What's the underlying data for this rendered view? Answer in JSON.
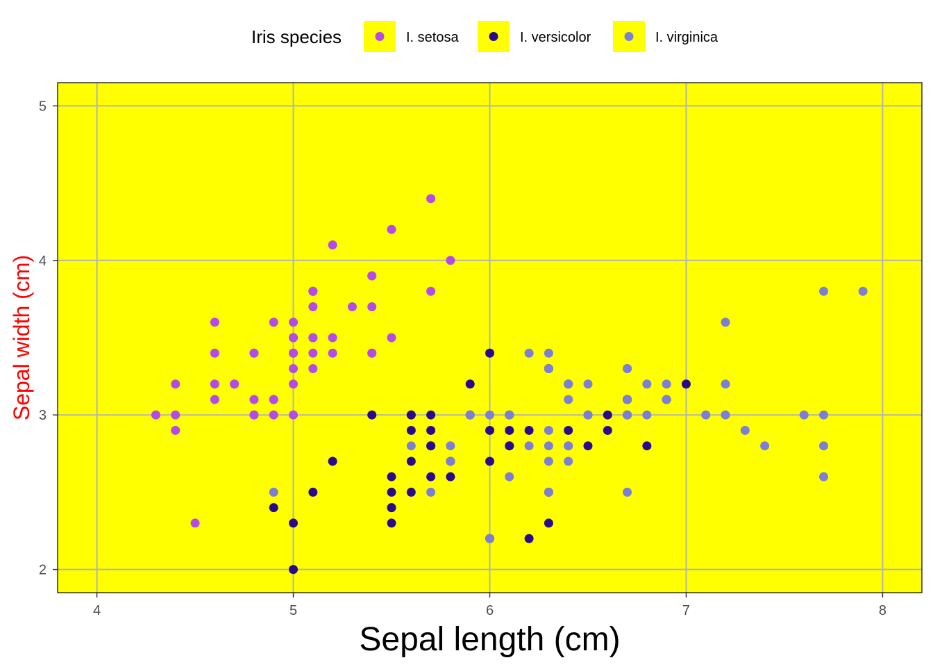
{
  "chart_data": {
    "type": "scatter",
    "title": "",
    "xlabel": "Sepal length (cm)",
    "ylabel": "Sepal width (cm)",
    "ylabel_color": "#ff0000",
    "xlim": [
      3.8,
      8.2
    ],
    "ylim": [
      1.85,
      5.15
    ],
    "x_ticks": [
      4,
      5,
      6,
      7,
      8
    ],
    "y_ticks": [
      2,
      3,
      4,
      5
    ],
    "grid": true,
    "panel_background": "#ffff00",
    "grid_color": "#b3b3b3",
    "legend": {
      "title": "Iris species",
      "position": "top",
      "key_background": "#ffff00"
    },
    "series": [
      {
        "name": "I. setosa",
        "color": "#b44ae8",
        "points": [
          [
            5.1,
            3.5
          ],
          [
            4.9,
            3.0
          ],
          [
            4.7,
            3.2
          ],
          [
            4.6,
            3.1
          ],
          [
            5.0,
            3.6
          ],
          [
            5.4,
            3.9
          ],
          [
            4.6,
            3.4
          ],
          [
            5.0,
            3.4
          ],
          [
            4.4,
            2.9
          ],
          [
            4.9,
            3.1
          ],
          [
            5.4,
            3.7
          ],
          [
            4.8,
            3.4
          ],
          [
            4.8,
            3.0
          ],
          [
            4.3,
            3.0
          ],
          [
            5.8,
            4.0
          ],
          [
            5.7,
            4.4
          ],
          [
            5.4,
            3.9
          ],
          [
            5.1,
            3.5
          ],
          [
            5.7,
            3.8
          ],
          [
            5.1,
            3.8
          ],
          [
            5.4,
            3.4
          ],
          [
            5.1,
            3.7
          ],
          [
            4.6,
            3.6
          ],
          [
            5.1,
            3.3
          ],
          [
            4.8,
            3.4
          ],
          [
            5.0,
            3.0
          ],
          [
            5.0,
            3.4
          ],
          [
            5.2,
            3.5
          ],
          [
            5.2,
            3.4
          ],
          [
            4.7,
            3.2
          ],
          [
            4.8,
            3.1
          ],
          [
            5.4,
            3.4
          ],
          [
            5.2,
            4.1
          ],
          [
            5.5,
            4.2
          ],
          [
            4.9,
            3.1
          ],
          [
            5.0,
            3.2
          ],
          [
            5.5,
            3.5
          ],
          [
            4.9,
            3.6
          ],
          [
            4.4,
            3.0
          ],
          [
            5.1,
            3.4
          ],
          [
            5.0,
            3.5
          ],
          [
            4.5,
            2.3
          ],
          [
            4.4,
            3.2
          ],
          [
            5.0,
            3.5
          ],
          [
            5.1,
            3.8
          ],
          [
            4.8,
            3.0
          ],
          [
            5.1,
            3.8
          ],
          [
            4.6,
            3.2
          ],
          [
            5.3,
            3.7
          ],
          [
            5.0,
            3.3
          ]
        ]
      },
      {
        "name": "I. versicolor",
        "color": "#2a0a8c",
        "points": [
          [
            7.0,
            3.2
          ],
          [
            6.4,
            3.2
          ],
          [
            6.9,
            3.1
          ],
          [
            5.5,
            2.3
          ],
          [
            6.5,
            2.8
          ],
          [
            5.7,
            2.8
          ],
          [
            6.3,
            3.3
          ],
          [
            4.9,
            2.4
          ],
          [
            6.6,
            2.9
          ],
          [
            5.2,
            2.7
          ],
          [
            5.0,
            2.0
          ],
          [
            5.9,
            3.0
          ],
          [
            6.0,
            2.2
          ],
          [
            6.1,
            2.9
          ],
          [
            5.6,
            2.9
          ],
          [
            6.7,
            3.1
          ],
          [
            5.6,
            3.0
          ],
          [
            5.8,
            2.7
          ],
          [
            6.2,
            2.2
          ],
          [
            5.6,
            2.5
          ],
          [
            5.9,
            3.2
          ],
          [
            6.1,
            2.8
          ],
          [
            6.3,
            2.5
          ],
          [
            6.1,
            2.8
          ],
          [
            6.4,
            2.9
          ],
          [
            6.6,
            3.0
          ],
          [
            6.8,
            2.8
          ],
          [
            6.7,
            3.0
          ],
          [
            6.0,
            2.9
          ],
          [
            5.7,
            2.6
          ],
          [
            5.5,
            2.4
          ],
          [
            5.5,
            2.4
          ],
          [
            5.8,
            2.7
          ],
          [
            6.0,
            2.7
          ],
          [
            5.4,
            3.0
          ],
          [
            6.0,
            3.4
          ],
          [
            6.7,
            3.1
          ],
          [
            6.3,
            2.3
          ],
          [
            5.6,
            3.0
          ],
          [
            5.5,
            2.5
          ],
          [
            5.5,
            2.6
          ],
          [
            6.1,
            3.0
          ],
          [
            5.8,
            2.6
          ],
          [
            5.0,
            2.3
          ],
          [
            5.6,
            2.7
          ],
          [
            5.7,
            3.0
          ],
          [
            5.7,
            2.9
          ],
          [
            6.2,
            2.9
          ],
          [
            5.1,
            2.5
          ],
          [
            5.7,
            2.8
          ]
        ]
      },
      {
        "name": "I. virginica",
        "color": "#7b7fd6",
        "points": [
          [
            6.3,
            3.3
          ],
          [
            5.8,
            2.7
          ],
          [
            7.1,
            3.0
          ],
          [
            6.3,
            2.9
          ],
          [
            6.5,
            3.0
          ],
          [
            7.6,
            3.0
          ],
          [
            4.9,
            2.5
          ],
          [
            7.3,
            2.9
          ],
          [
            6.7,
            2.5
          ],
          [
            7.2,
            3.6
          ],
          [
            6.5,
            3.2
          ],
          [
            6.4,
            2.7
          ],
          [
            6.8,
            3.0
          ],
          [
            5.7,
            2.5
          ],
          [
            5.8,
            2.8
          ],
          [
            6.4,
            3.2
          ],
          [
            6.5,
            3.0
          ],
          [
            7.7,
            3.8
          ],
          [
            7.7,
            2.6
          ],
          [
            6.0,
            2.2
          ],
          [
            6.9,
            3.2
          ],
          [
            5.6,
            2.8
          ],
          [
            7.7,
            2.8
          ],
          [
            6.3,
            2.7
          ],
          [
            6.7,
            3.3
          ],
          [
            7.2,
            3.2
          ],
          [
            6.2,
            2.8
          ],
          [
            6.1,
            3.0
          ],
          [
            6.4,
            2.8
          ],
          [
            7.2,
            3.0
          ],
          [
            7.4,
            2.8
          ],
          [
            7.9,
            3.8
          ],
          [
            6.4,
            2.8
          ],
          [
            6.3,
            2.8
          ],
          [
            6.1,
            2.6
          ],
          [
            7.7,
            3.0
          ],
          [
            6.3,
            3.4
          ],
          [
            6.4,
            3.1
          ],
          [
            6.0,
            3.0
          ],
          [
            6.9,
            3.1
          ],
          [
            6.7,
            3.1
          ],
          [
            6.9,
            3.1
          ],
          [
            5.8,
            2.7
          ],
          [
            6.8,
            3.2
          ],
          [
            6.7,
            3.3
          ],
          [
            6.7,
            3.0
          ],
          [
            6.3,
            2.5
          ],
          [
            6.5,
            3.0
          ],
          [
            6.2,
            3.4
          ],
          [
            5.9,
            3.0
          ]
        ]
      }
    ]
  }
}
